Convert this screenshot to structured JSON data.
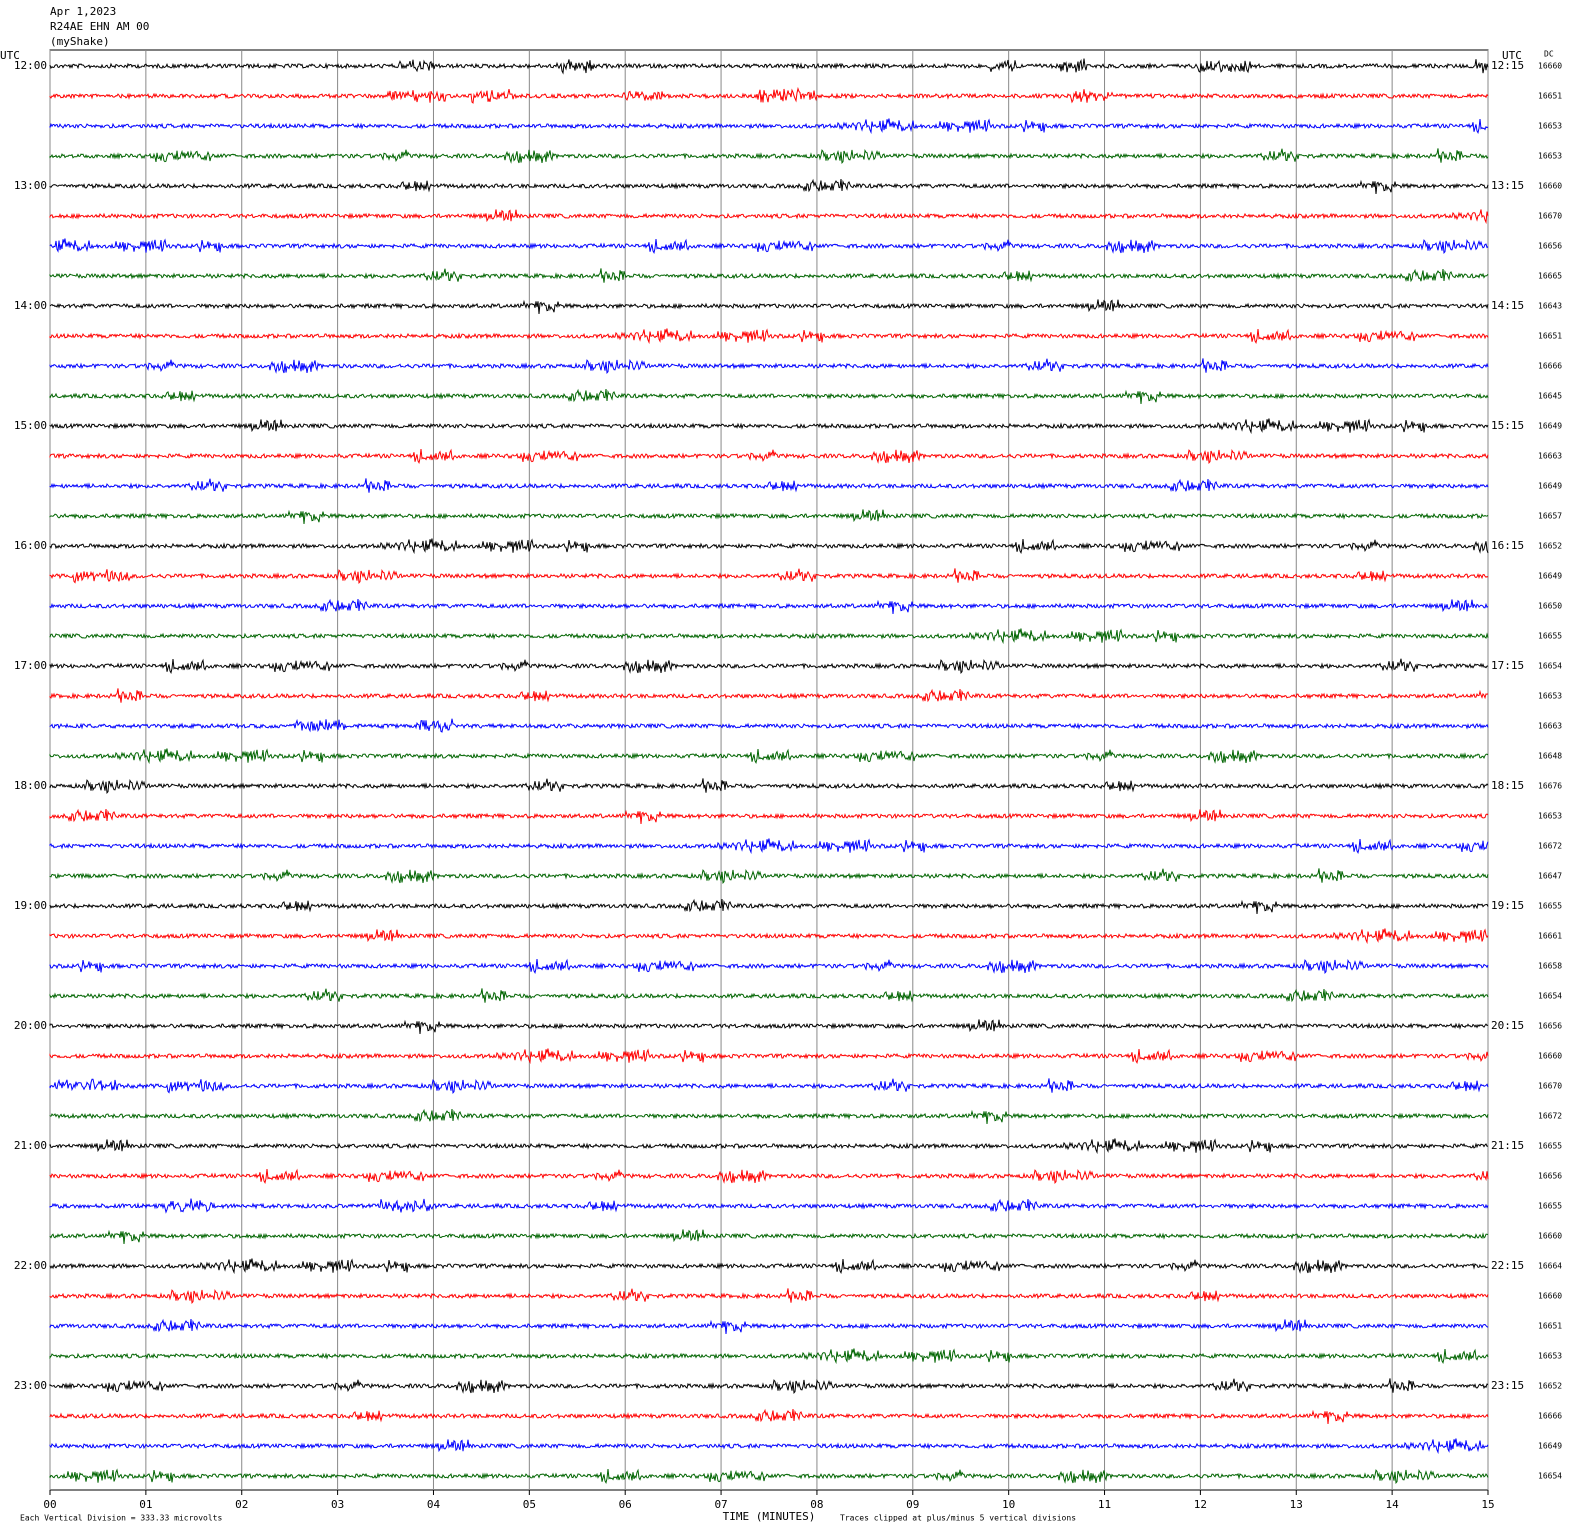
{
  "chart_data": {
    "type": "helicorder",
    "header": [
      "Apr 1,2023",
      "R24AE EHN AM 00",
      "(myShake)"
    ],
    "left_axis_label": "UTC",
    "right_axis_label": "UTC",
    "dc_label": "DC",
    "left_times": [
      "12:00",
      "13:00",
      "14:00",
      "15:00",
      "16:00",
      "17:00",
      "18:00",
      "19:00",
      "20:00",
      "21:00",
      "22:00",
      "23:00"
    ],
    "right_times": [
      "12:15",
      "13:15",
      "14:15",
      "15:15",
      "16:15",
      "17:15",
      "18:15",
      "19:15",
      "20:15",
      "21:15",
      "22:15",
      "23:15"
    ],
    "dc_values": [
      16660,
      16651,
      16653,
      16653,
      16660,
      16670,
      16656,
      16665,
      16643,
      16651,
      16666,
      16645,
      16649,
      16663,
      16649,
      16657,
      16652,
      16649,
      16650,
      16655,
      16654,
      16653,
      16663,
      16648,
      16676,
      16653,
      16672,
      16647,
      16655,
      16661,
      16658,
      16654,
      16656,
      16660,
      16670,
      16672,
      16655,
      16656,
      16655,
      16660,
      16664,
      16660,
      16651,
      16653,
      16652,
      16666,
      16649,
      16654
    ],
    "trace_colors": [
      "#000000",
      "#ff0000",
      "#0000ff",
      "#006400"
    ],
    "xlim": [
      0,
      15
    ],
    "xticks": [
      {
        "value": 0,
        "label": "00"
      },
      {
        "value": 1,
        "label": "01"
      },
      {
        "value": 2,
        "label": "02"
      },
      {
        "value": 3,
        "label": "03"
      },
      {
        "value": 4,
        "label": "04"
      },
      {
        "value": 5,
        "label": "05"
      },
      {
        "value": 6,
        "label": "06"
      },
      {
        "value": 7,
        "label": "07"
      },
      {
        "value": 8,
        "label": "08"
      },
      {
        "value": 9,
        "label": "09"
      },
      {
        "value": 10,
        "label": "10"
      },
      {
        "value": 11,
        "label": "11"
      },
      {
        "value": 12,
        "label": "12"
      },
      {
        "value": 13,
        "label": "13"
      },
      {
        "value": 14,
        "label": "14"
      },
      {
        "value": 15,
        "label": "15"
      }
    ],
    "xlabel": "TIME (MINUTES)",
    "footer_left": "Each Vertical Division =  333.33 microvolts",
    "footer_right": "Traces clipped at plus/minus 5 vertical divisions",
    "grid": true
  }
}
